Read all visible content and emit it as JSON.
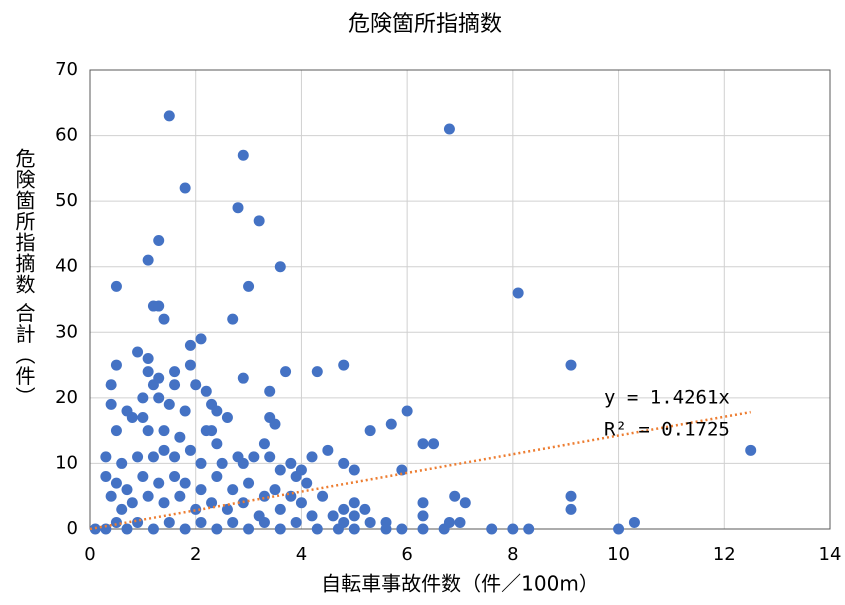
{
  "chart_data": {
    "type": "scatter",
    "title": "危険箇所指摘数",
    "x_label": "自転車事故件数（件／100m）",
    "y_label": "危険箇所指摘数 合計（件）",
    "series": [
      {
        "color": "#4472c4",
        "x": [
          1.5,
          6.8,
          2.9,
          1.8,
          2.8,
          3.2,
          1.3,
          1.1,
          3.6,
          0.5,
          3.0,
          8.1,
          1.2,
          1.3,
          1.4,
          2.7,
          0.9,
          1.1,
          2.1,
          1.9,
          0.5,
          1.9,
          4.8,
          9.1,
          1.6,
          3.7,
          4.3,
          1.1,
          0.4,
          1.2,
          2.0,
          2.2,
          3.4,
          2.9,
          1.3,
          1.6,
          0.4,
          1.0,
          1.3,
          0.7,
          0.8,
          1.0,
          1.5,
          1.8,
          2.3,
          2.4,
          2.6,
          3.4,
          3.5,
          5.7,
          6.0,
          5.3,
          1.1,
          1.4,
          0.5,
          2.2,
          2.3,
          1.7,
          2.4,
          3.3,
          3.8,
          4.5,
          6.3,
          6.5,
          12.5,
          0.3,
          0.6,
          0.9,
          1.2,
          1.4,
          1.6,
          1.9,
          2.1,
          2.5,
          2.8,
          2.9,
          3.1,
          3.4,
          3.6,
          3.9,
          4.0,
          4.2,
          4.8,
          5.0,
          5.9,
          4.1,
          0.3,
          0.5,
          0.7,
          1.0,
          1.3,
          1.6,
          1.8,
          2.1,
          2.4,
          2.7,
          3.0,
          3.3,
          3.5,
          3.8,
          4.4,
          4.0,
          4.8,
          5.0,
          5.2,
          6.3,
          7.1,
          6.9,
          9.1,
          9.1,
          0.4,
          0.6,
          0.8,
          1.1,
          1.4,
          1.7,
          2.0,
          2.3,
          2.6,
          2.9,
          3.2,
          3.6,
          4.2,
          4.6,
          5.0,
          5.6,
          6.3,
          7.0,
          10.3,
          0.1,
          0.3,
          0.5,
          0.7,
          0.9,
          1.2,
          1.5,
          1.8,
          2.1,
          2.4,
          2.7,
          3.0,
          3.3,
          3.6,
          3.9,
          4.3,
          4.7,
          5.0,
          5.3,
          5.6,
          5.9,
          6.3,
          6.7,
          7.6,
          8.0,
          8.3,
          10.0,
          6.8,
          4.8
        ],
        "values": [
          63,
          61,
          57,
          52,
          49,
          47,
          44,
          41,
          40,
          37,
          37,
          36,
          34,
          34,
          32,
          32,
          27,
          26,
          29,
          28,
          25,
          25,
          25,
          25,
          24,
          24,
          24,
          24,
          22,
          22,
          22,
          21,
          21,
          23,
          23,
          22,
          19,
          20,
          20,
          18,
          17,
          17,
          19,
          18,
          19,
          18,
          17,
          17,
          16,
          16,
          18,
          15,
          15,
          15,
          15,
          15,
          15,
          14,
          13,
          13,
          10,
          12,
          13,
          13,
          12,
          11,
          10,
          11,
          11,
          12,
          11,
          12,
          10,
          10,
          11,
          10,
          11,
          11,
          9,
          8,
          9,
          11,
          10,
          9,
          9,
          7,
          8,
          7,
          6,
          8,
          7,
          8,
          7,
          6,
          8,
          6,
          7,
          5,
          6,
          5,
          5,
          4,
          3,
          4,
          3,
          4,
          4,
          5,
          5,
          3,
          5,
          3,
          4,
          5,
          4,
          5,
          3,
          4,
          3,
          4,
          2,
          3,
          2,
          2,
          2,
          1,
          2,
          1,
          1,
          0,
          0,
          1,
          0,
          1,
          0,
          1,
          0,
          1,
          0,
          1,
          0,
          1,
          0,
          1,
          0,
          0,
          0,
          1,
          0,
          0,
          0,
          0,
          0,
          0,
          0,
          0,
          1,
          1
        ]
      }
    ],
    "trendline": {
      "color": "#ed7d31",
      "slope": 1.4261,
      "x": [
        0,
        12.5
      ],
      "labels": [
        "y = 1.4261x",
        "R² = 0.1725"
      ]
    },
    "xlim": [
      0,
      14
    ],
    "xticks": [
      0,
      2,
      4,
      6,
      8,
      10,
      12,
      14
    ],
    "ylim": [
      0,
      70
    ],
    "yticks": [
      0,
      10,
      20,
      30,
      40,
      50,
      60,
      70
    ],
    "grid": true
  }
}
